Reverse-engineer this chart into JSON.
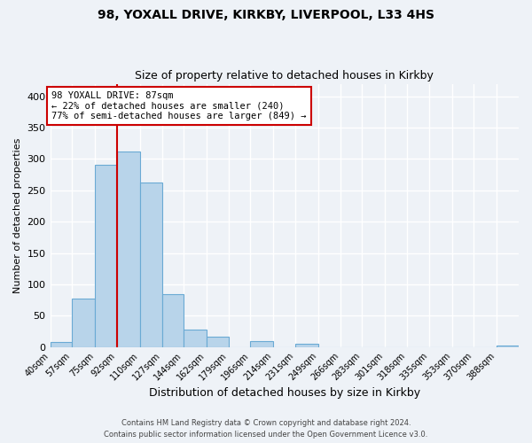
{
  "title": "98, YOXALL DRIVE, KIRKBY, LIVERPOOL, L33 4HS",
  "subtitle": "Size of property relative to detached houses in Kirkby",
  "xlabel": "Distribution of detached houses by size in Kirkby",
  "ylabel": "Number of detached properties",
  "bar_color": "#b8d4ea",
  "bar_edge_color": "#6aaad4",
  "bin_labels": [
    "40sqm",
    "57sqm",
    "75sqm",
    "92sqm",
    "110sqm",
    "127sqm",
    "144sqm",
    "162sqm",
    "179sqm",
    "196sqm",
    "214sqm",
    "231sqm",
    "249sqm",
    "266sqm",
    "283sqm",
    "301sqm",
    "318sqm",
    "335sqm",
    "353sqm",
    "370sqm",
    "388sqm"
  ],
  "bar_heights": [
    8,
    77,
    291,
    312,
    263,
    85,
    28,
    16,
    0,
    9,
    0,
    5,
    0,
    0,
    0,
    0,
    0,
    0,
    0,
    0,
    2
  ],
  "bin_edges": [
    40,
    57,
    75,
    92,
    110,
    127,
    144,
    162,
    179,
    196,
    214,
    231,
    249,
    266,
    283,
    301,
    318,
    335,
    353,
    370,
    388
  ],
  "vline_color": "#cc0000",
  "vline_x": 92,
  "annotation_text": "98 YOXALL DRIVE: 87sqm\n← 22% of detached houses are smaller (240)\n77% of semi-detached houses are larger (849) →",
  "annotation_box_color": "#ffffff",
  "annotation_box_edge": "#cc0000",
  "ylim": [
    0,
    420
  ],
  "yticks": [
    0,
    50,
    100,
    150,
    200,
    250,
    300,
    350,
    400
  ],
  "footer_line1": "Contains HM Land Registry data © Crown copyright and database right 2024.",
  "footer_line2": "Contains public sector information licensed under the Open Government Licence v3.0.",
  "background_color": "#eef2f7",
  "grid_color": "#ffffff",
  "title_fontsize": 10,
  "subtitle_fontsize": 9,
  "ylabel_fontsize": 8,
  "xlabel_fontsize": 9
}
